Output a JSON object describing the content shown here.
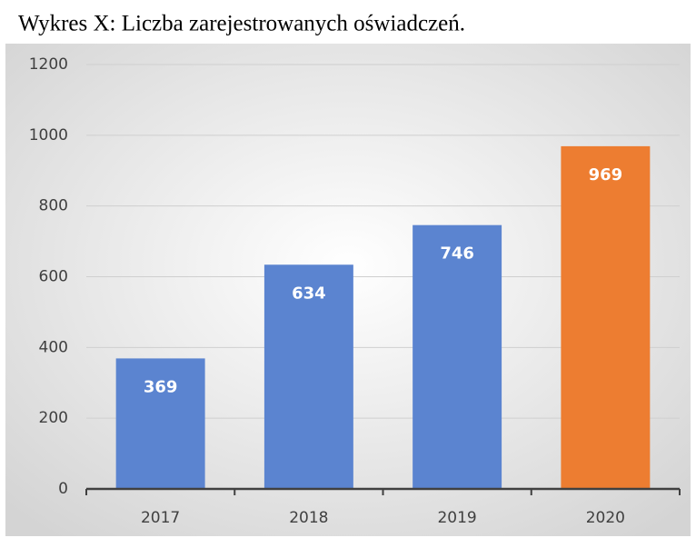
{
  "chart_data": {
    "type": "bar",
    "title": "Wykres X: Liczba zarejestrowanych oświadczeń.",
    "categories": [
      "2017",
      "2018",
      "2019",
      "2020"
    ],
    "values": [
      369,
      634,
      746,
      969
    ],
    "colors": [
      "#5b84d0",
      "#5b84d0",
      "#5b84d0",
      "#ed7d31"
    ],
    "ylim": [
      0,
      1200
    ],
    "yticks": [
      0,
      200,
      400,
      600,
      800,
      1000,
      1200
    ],
    "grid": true
  }
}
